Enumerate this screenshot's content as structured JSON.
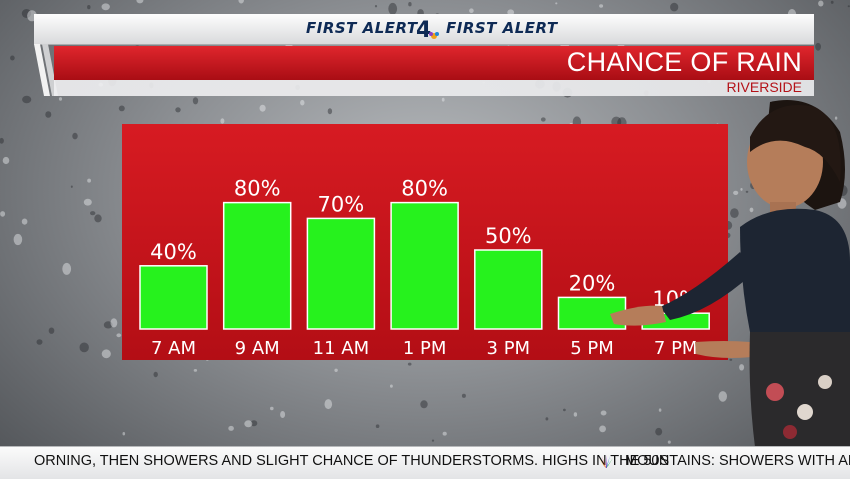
{
  "header": {
    "brand_left": "FIRST ALERT",
    "brand_right": "FIRST ALERT",
    "title": "CHANCE OF RAIN",
    "location": "RIVERSIDE"
  },
  "colors": {
    "bar": "#26f21d",
    "panel": "#c8141b",
    "title_bar": "#d41f26",
    "brand_navy": "#0e2a55"
  },
  "chart_data": {
    "type": "bar",
    "categories": [
      "7 AM",
      "9 AM",
      "11 AM",
      "1 PM",
      "3 PM",
      "5 PM",
      "7 PM"
    ],
    "values": [
      40,
      80,
      70,
      80,
      50,
      20,
      10
    ],
    "value_labels": [
      "40%",
      "80%",
      "70%",
      "80%",
      "50%",
      "20%",
      "10%"
    ],
    "title": "CHANCE OF RAIN",
    "subtitle": "RIVERSIDE",
    "unit": "%",
    "ylim": [
      0,
      100
    ],
    "grid": false,
    "legend": "none"
  },
  "ticker": {
    "text": "ORNING, THEN SHOWERS AND SLIGHT CHANCE OF THUNDERSTORMS. HIGHS IN THE 50S",
    "text2": "MOUNTAINS: SHOWERS WITH AREAS"
  },
  "icons": {
    "station_logo": "nbc-4-logo-icon",
    "peacock": "nbc-peacock-icon"
  }
}
